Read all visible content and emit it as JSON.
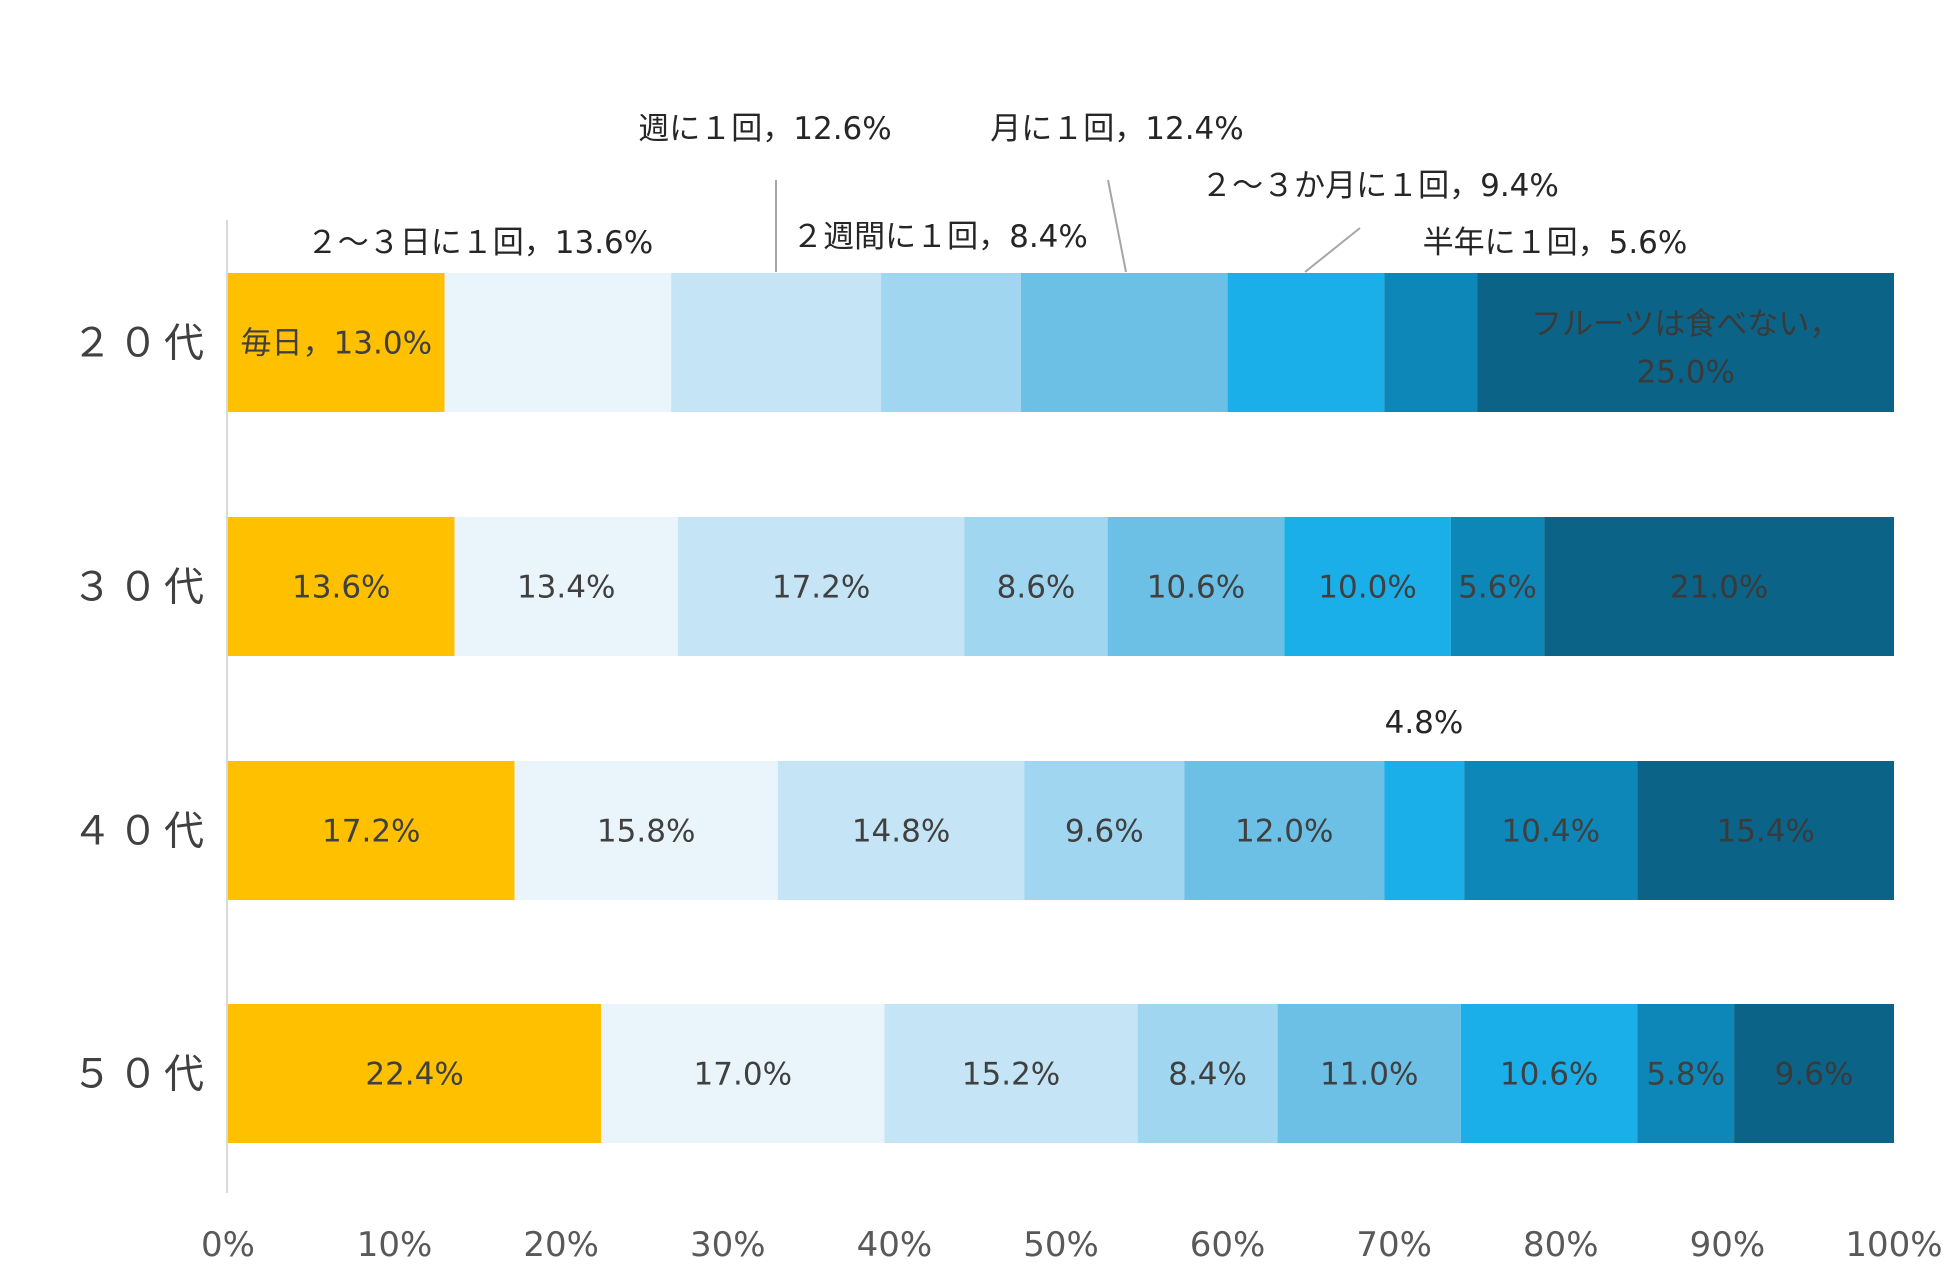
{
  "chart_data": {
    "type": "bar",
    "orientation": "horizontal",
    "stacked": true,
    "title": "",
    "xlabel": "",
    "ylabel": "",
    "xlim": [
      0,
      100
    ],
    "ticks": [
      "0%",
      "10%",
      "20%",
      "30%",
      "40%",
      "50%",
      "60%",
      "70%",
      "80%",
      "90%",
      "100%"
    ],
    "grid": false,
    "legend": "none",
    "categories": [
      "２０代",
      "３０代",
      "４０代",
      "５０代"
    ],
    "series": [
      {
        "name": "毎日",
        "color": "#FFC000",
        "label_color": "#404040",
        "values": [
          13.0,
          13.6,
          17.2,
          22.4
        ],
        "labels": [
          "毎日，13.0%",
          "13.6%",
          "17.2%",
          "22.4%"
        ]
      },
      {
        "name": "２～３日に１回",
        "color": "#EAF4FB",
        "label_color": "#404040",
        "values": [
          13.6,
          13.4,
          15.8,
          17.0
        ],
        "labels": [
          "",
          "13.4%",
          "15.8%",
          "17.0%"
        ]
      },
      {
        "name": "週に１回",
        "color": "#C5E5F6",
        "label_color": "#404040",
        "values": [
          12.6,
          17.2,
          14.8,
          15.2
        ],
        "labels": [
          "",
          "17.2%",
          "14.8%",
          "15.2%"
        ]
      },
      {
        "name": "２週間に１回",
        "color": "#A0D6F0",
        "label_color": "#404040",
        "values": [
          8.4,
          8.6,
          9.6,
          8.4
        ],
        "labels": [
          "",
          "8.6%",
          "9.6%",
          "8.4%"
        ]
      },
      {
        "name": "月に１回",
        "color": "#6CC0E6",
        "label_color": "#404040",
        "values": [
          12.4,
          10.6,
          12.0,
          11.0
        ],
        "labels": [
          "",
          "10.6%",
          "12.0%",
          "11.0%"
        ]
      },
      {
        "name": "２～３か月に１回",
        "color": "#1BAFE9",
        "label_color": "#404040",
        "values": [
          9.4,
          10.0,
          4.8,
          10.6
        ],
        "labels": [
          "",
          "10.0%",
          "",
          "10.6%"
        ]
      },
      {
        "name": "半年に１回",
        "color": "#0D86B8",
        "label_color": "#404040",
        "values": [
          5.6,
          5.6,
          10.4,
          5.8
        ],
        "labels": [
          "",
          "5.6%",
          "10.4%",
          "5.8%"
        ]
      },
      {
        "name": "フルーツは食べない",
        "color": "#0B6487",
        "label_color": "#3A3A3A",
        "values": [
          25.0,
          21.0,
          15.4,
          9.6
        ],
        "labels": [
          "フルーツは食べない，|25.0%",
          "21.0%",
          "15.4%",
          "9.6%"
        ]
      }
    ],
    "callouts": [
      {
        "text": "週に１回，12.6%",
        "row": 0,
        "series": 2,
        "leader": true
      },
      {
        "text": "月に１回，12.4%",
        "row": 0,
        "series": 4,
        "leader": true
      },
      {
        "text": "２～３か月に１回，9.4%",
        "row": 0,
        "series": 5,
        "leader": true
      },
      {
        "text": "２週間に１回，8.4%",
        "row": 0,
        "series": 3,
        "leader": false
      },
      {
        "text": "２～３日に１回，13.6%",
        "row": 0,
        "series": 1,
        "leader": false
      },
      {
        "text": "半年に１回，5.6%",
        "row": 0,
        "series": 6,
        "leader": false
      },
      {
        "text": "4.8%",
        "row": 2,
        "series": 5,
        "leader": false
      }
    ]
  }
}
